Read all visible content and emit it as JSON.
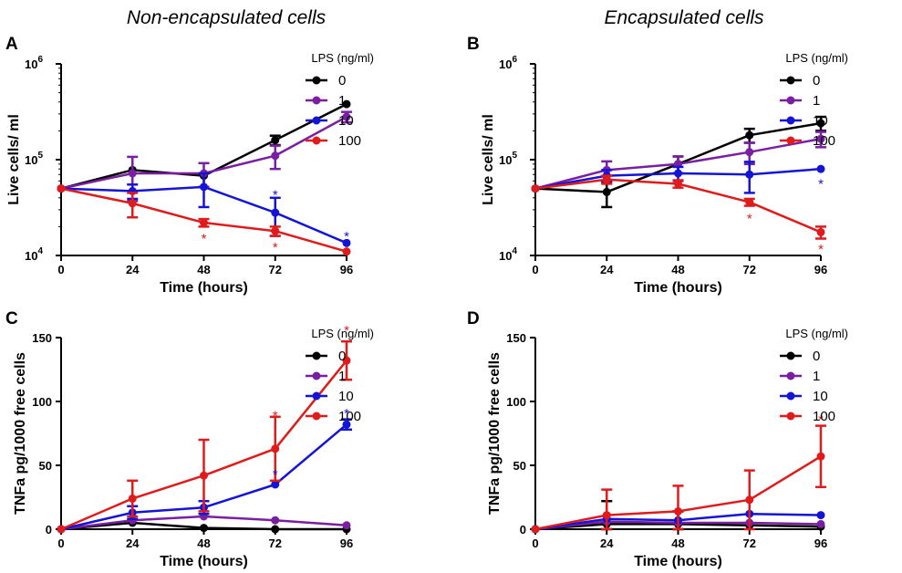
{
  "column_titles": [
    "Non-encapsulated cells",
    "Encapsulated cells"
  ],
  "colors": {
    "s0": "#000000",
    "s1": "#7a1fa2",
    "s10": "#1414d6",
    "s100": "#e01b1b"
  },
  "chart_data": [
    {
      "panel": "A",
      "type": "line",
      "scale": "log",
      "title": "",
      "xlabel": "Time (hours)",
      "ylabel": "Live cells/ ml",
      "x": [
        0,
        24,
        48,
        72,
        96
      ],
      "xlim": [
        0,
        96
      ],
      "ylim": [
        10000,
        1000000
      ],
      "y_tick_labels": [
        {
          "base": "10",
          "exp": "4"
        },
        {
          "base": "10",
          "exp": "5"
        },
        {
          "base": "10",
          "exp": "6"
        }
      ],
      "legend_title": "LPS (ng/ml)",
      "legend_position": "top-right",
      "series": [
        {
          "name": "0",
          "color": "#000000",
          "values": [
            50000,
            78000,
            68000,
            160000,
            380000
          ],
          "errors": [
            0,
            0,
            0,
            18000,
            0
          ]
        },
        {
          "name": "1",
          "color": "#7a1fa2",
          "values": [
            50000,
            72000,
            72000,
            110000,
            280000
          ],
          "errors": [
            0,
            35000,
            20000,
            30000,
            35000
          ]
        },
        {
          "name": "10",
          "color": "#1414d6",
          "values": [
            50000,
            47000,
            52000,
            28000,
            13500
          ],
          "errors": [
            0,
            8000,
            20000,
            12000,
            0
          ]
        },
        {
          "name": "100",
          "color": "#e01b1b",
          "values": [
            50000,
            35000,
            22000,
            18000,
            11000
          ],
          "errors": [
            0,
            10000,
            2000,
            2000,
            0
          ]
        }
      ],
      "annotations": [
        {
          "text": "*",
          "x": 48,
          "y": 16000,
          "color": "#e01b1b"
        },
        {
          "text": "*",
          "x": 72,
          "y": 46000,
          "color": "#1414d6"
        },
        {
          "text": "*",
          "x": 72,
          "y": 13000,
          "color": "#e01b1b"
        },
        {
          "text": "*",
          "x": 96,
          "y": 17000,
          "color": "#1414d6"
        }
      ]
    },
    {
      "panel": "B",
      "type": "line",
      "scale": "log",
      "title": "",
      "xlabel": "Time (hours)",
      "ylabel": "Live cells/ ml",
      "x": [
        0,
        24,
        48,
        72,
        96
      ],
      "xlim": [
        0,
        96
      ],
      "ylim": [
        10000,
        1000000
      ],
      "y_tick_labels": [
        {
          "base": "10",
          "exp": "4"
        },
        {
          "base": "10",
          "exp": "5"
        },
        {
          "base": "10",
          "exp": "6"
        }
      ],
      "legend_title": "LPS (ng/ml)",
      "legend_position": "top-right",
      "series": [
        {
          "name": "0",
          "color": "#000000",
          "values": [
            50000,
            46000,
            90000,
            180000,
            240000
          ],
          "errors": [
            0,
            14000,
            18000,
            30000,
            40000
          ]
        },
        {
          "name": "1",
          "color": "#7a1fa2",
          "values": [
            50000,
            78000,
            90000,
            120000,
            165000
          ],
          "errors": [
            0,
            18000,
            18000,
            30000,
            30000
          ]
        },
        {
          "name": "10",
          "color": "#1414d6",
          "values": [
            50000,
            68000,
            72000,
            70000,
            80000
          ],
          "errors": [
            0,
            10000,
            12000,
            25000,
            0
          ]
        },
        {
          "name": "100",
          "color": "#e01b1b",
          "values": [
            50000,
            62000,
            56000,
            36000,
            17500
          ],
          "errors": [
            0,
            6000,
            5000,
            3000,
            2500
          ]
        }
      ],
      "annotations": [
        {
          "text": "*",
          "x": 96,
          "y": 60000,
          "color": "#1414d6"
        },
        {
          "text": "*",
          "x": 72,
          "y": 26000,
          "color": "#e01b1b"
        },
        {
          "text": "*",
          "x": 96,
          "y": 12500,
          "color": "#e01b1b"
        }
      ]
    },
    {
      "panel": "C",
      "type": "line",
      "scale": "linear",
      "title": "",
      "xlabel": "Time (hours)",
      "ylabel": "TNFa pg/1000 free cells",
      "x": [
        0,
        24,
        48,
        72,
        96
      ],
      "xlim": [
        0,
        96
      ],
      "ylim": [
        0,
        150
      ],
      "y_ticks": [
        0,
        50,
        100,
        150
      ],
      "legend_title": "LPS (ng/ml)",
      "legend_position": "top-right",
      "series": [
        {
          "name": "0",
          "color": "#000000",
          "values": [
            0,
            5,
            1,
            0,
            0
          ],
          "errors": [
            0,
            0,
            0,
            0,
            0
          ]
        },
        {
          "name": "1",
          "color": "#7a1fa2",
          "values": [
            0,
            7,
            10,
            7,
            3
          ],
          "errors": [
            0,
            0,
            0,
            0,
            0
          ]
        },
        {
          "name": "10",
          "color": "#1414d6",
          "values": [
            0,
            13,
            17,
            35,
            82
          ],
          "errors": [
            0,
            5,
            5,
            0,
            4
          ]
        },
        {
          "name": "100",
          "color": "#e01b1b",
          "values": [
            0,
            24,
            42,
            63,
            132
          ],
          "errors": [
            0,
            14,
            28,
            25,
            15
          ]
        }
      ],
      "annotations": [
        {
          "text": "*",
          "x": 72,
          "y": 91,
          "color": "#e01b1b"
        },
        {
          "text": "*",
          "x": 72,
          "y": 45,
          "color": "#1414d6"
        },
        {
          "text": "*",
          "x": 96,
          "y": 158,
          "color": "#e01b1b"
        },
        {
          "text": "*",
          "x": 96,
          "y": 93,
          "color": "#1414d6"
        }
      ]
    },
    {
      "panel": "D",
      "type": "line",
      "scale": "linear",
      "title": "",
      "xlabel": "Time (hours)",
      "ylabel": "TNFa pg/1000 free cells",
      "x": [
        0,
        24,
        48,
        72,
        96
      ],
      "xlim": [
        0,
        96
      ],
      "ylim": [
        0,
        150
      ],
      "y_ticks": [
        0,
        50,
        100,
        150
      ],
      "legend_title": "LPS (ng/ml)",
      "legend_position": "top-right",
      "series": [
        {
          "name": "0",
          "color": "#000000",
          "values": [
            0,
            4,
            4,
            3,
            2
          ],
          "errors": [
            0,
            18,
            10,
            0,
            0
          ]
        },
        {
          "name": "1",
          "color": "#7a1fa2",
          "values": [
            0,
            6,
            5,
            5,
            4
          ],
          "errors": [
            0,
            0,
            0,
            0,
            0
          ]
        },
        {
          "name": "10",
          "color": "#1414d6",
          "values": [
            0,
            8,
            7,
            12,
            11
          ],
          "errors": [
            0,
            0,
            0,
            0,
            0
          ]
        },
        {
          "name": "100",
          "color": "#e01b1b",
          "values": [
            0,
            11,
            14,
            23,
            57
          ],
          "errors": [
            0,
            20,
            20,
            23,
            24
          ]
        }
      ],
      "annotations": [
        {
          "text": "*",
          "x": 96,
          "y": 88,
          "color": "#e01b1b"
        }
      ]
    }
  ]
}
